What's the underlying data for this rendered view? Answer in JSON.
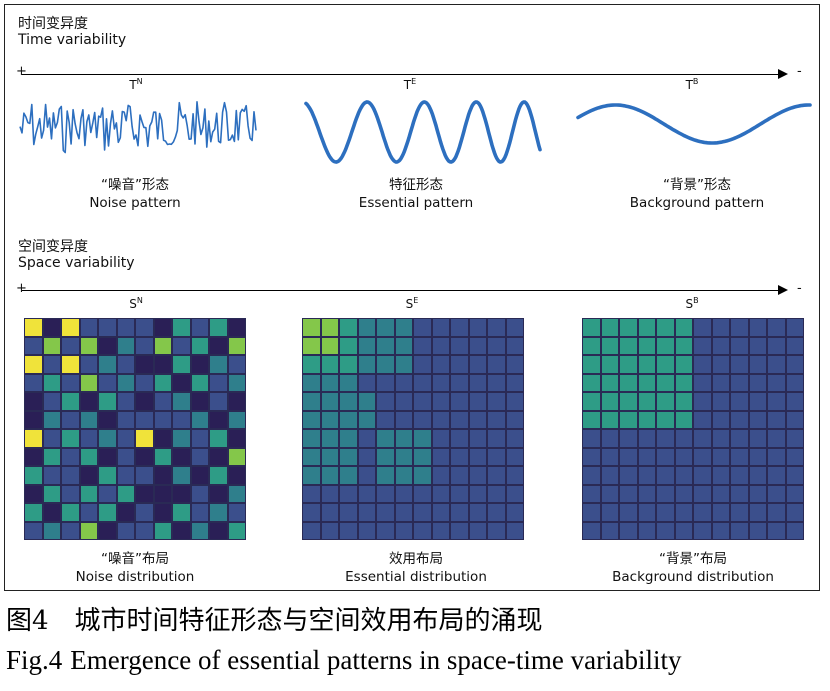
{
  "time": {
    "title_zh": "时间变异度",
    "title_en": "Time variability",
    "plus": "+",
    "minus": "-",
    "symbols": [
      {
        "base": "T",
        "sup": "N"
      },
      {
        "base": "T",
        "sup": "E"
      },
      {
        "base": "T",
        "sup": "B"
      }
    ],
    "captions": [
      {
        "zh": "“噪音”形态",
        "en": "Noise pattern"
      },
      {
        "zh": "特征形态",
        "en": "Essential pattern"
      },
      {
        "zh": "“背景”形态",
        "en": "Background pattern"
      }
    ]
  },
  "space": {
    "title_zh": "空间变异度",
    "title_en": "Space variability",
    "plus": "+",
    "minus": "-",
    "symbols": [
      {
        "base": "S",
        "sup": "N"
      },
      {
        "base": "S",
        "sup": "E"
      },
      {
        "base": "S",
        "sup": "B"
      }
    ],
    "captions": [
      {
        "zh": "“噪音”布局",
        "en": "Noise distribution"
      },
      {
        "zh": "效用布局",
        "en": "Essential distribution"
      },
      {
        "zh": "“背景”布局",
        "en": "Background distribution"
      }
    ]
  },
  "colors": {
    "wave": "#2d6fbf",
    "grid_base": "#3b4f8c",
    "grid_dark": "#2a1f56",
    "grid_mid": "#2f7f8c",
    "grid_teal": "#2e9c86",
    "grid_green": "#84c74a",
    "grid_yellow": "#f0e33a"
  },
  "figure": {
    "label_zh": "图4",
    "caption_zh": "城市时间特征形态与空间效用布局的涌现",
    "label_en": "Fig.4",
    "caption_en": "Emergence of essential patterns in space-time variability"
  }
}
